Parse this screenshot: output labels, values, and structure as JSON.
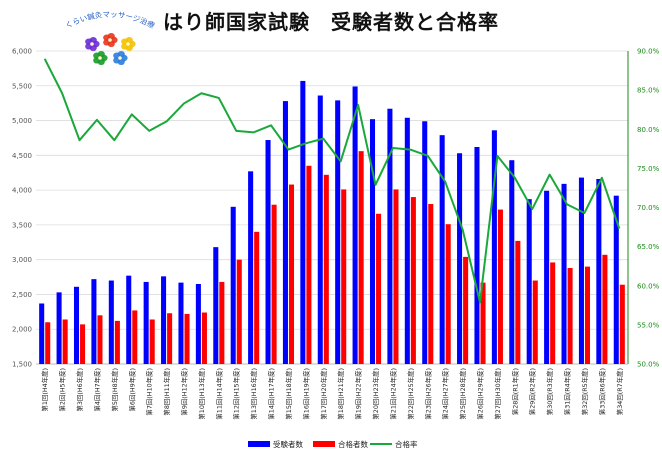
{
  "title": "はり師国家試験　受験者数と合格率",
  "logo": {
    "text": "ぷくらい鍼灸マッサージ治療院",
    "petal_colors": [
      "#6a2bd6",
      "#e8341c",
      "#f2c200",
      "#1a9a2a",
      "#2b7de0"
    ]
  },
  "colors": {
    "examinees": "#0000ff",
    "passers": "#ff0000",
    "rate": "#1aa83a",
    "grid": "#dcdcdc",
    "rate_axis": "#1a8a1a"
  },
  "legend": {
    "examinees": "受験者数",
    "passers": "合格者数",
    "rate": "合格率"
  },
  "chart_data": {
    "type": "bar",
    "categories": [
      "第1回",
      "第2回",
      "第3回",
      "第4回",
      "第5回",
      "第6回",
      "第7回",
      "第8回",
      "第9回",
      "第10回",
      "第11回",
      "第12回",
      "第13回",
      "第14回",
      "第15回",
      "第16回",
      "第17回",
      "第18回",
      "第19回",
      "第20回",
      "第21回",
      "第22回",
      "第23回",
      "第24回",
      "第25回",
      "第26回",
      "第27回",
      "第28回",
      "第29回",
      "第30回",
      "第31回",
      "第32回",
      "第33回",
      "第34回"
    ],
    "sub_categories": [
      "(H4年度)",
      "(H5年度)",
      "(H6年度)",
      "(H7年度)",
      "(H8年度)",
      "(H9年度)",
      "(H10年度)",
      "(H11年度)",
      "(H12年度)",
      "(H13年度)",
      "(H14年度)",
      "(H15年度)",
      "(H16年度)",
      "(H17年度)",
      "(H18年度)",
      "(H19年度)",
      "(H20年度)",
      "(H21年度)",
      "(H22年度)",
      "(H23年度)",
      "(H24年度)",
      "(H25年度)",
      "(H26年度)",
      "(H27年度)",
      "(H28年度)",
      "(H29年度)",
      "(H30年度)",
      "(R1年度)",
      "(R2年度)",
      "(R3年度)",
      "(R4年度)",
      "(R5年度)",
      "(R6年度)",
      "(R7年度)"
    ],
    "series": [
      {
        "name": "受験者数",
        "axis": "left",
        "kind": "bar",
        "values": [
          2370,
          2530,
          2610,
          2720,
          2700,
          2770,
          2680,
          2760,
          2670,
          2650,
          3180,
          3760,
          4270,
          4720,
          5280,
          5570,
          5360,
          5290,
          5490,
          5020,
          5170,
          5040,
          4990,
          4790,
          4530,
          4620,
          4860,
          4430,
          3870,
          3990,
          4090,
          4180,
          4160,
          3920
        ]
      },
      {
        "name": "合格者数",
        "axis": "left",
        "kind": "bar",
        "values": [
          2100,
          2140,
          2070,
          2200,
          2120,
          2270,
          2140,
          2230,
          2220,
          2240,
          2680,
          3000,
          3400,
          3790,
          4080,
          4350,
          4220,
          4010,
          4560,
          3660,
          4010,
          3900,
          3800,
          3510,
          3040,
          2670,
          3720,
          3270,
          2700,
          2960,
          2880,
          2900,
          3070,
          2640
        ]
      },
      {
        "name": "合格率",
        "axis": "right",
        "kind": "line",
        "values": [
          89.0,
          84.6,
          78.6,
          81.2,
          78.6,
          81.9,
          79.8,
          81.0,
          83.3,
          84.6,
          84.0,
          79.8,
          79.6,
          80.5,
          77.4,
          78.2,
          78.8,
          75.9,
          83.1,
          72.9,
          77.6,
          77.4,
          76.6,
          73.3,
          67.2,
          57.9,
          76.6,
          73.8,
          69.8,
          74.2,
          70.4,
          69.3,
          73.8,
          67.3
        ]
      }
    ],
    "y_left": {
      "min": 1500,
      "max": 6000,
      "ticks": [
        "1,500",
        "2,000",
        "2,500",
        "3,000",
        "3,500",
        "4,000",
        "4,500",
        "5,000",
        "5,500",
        "6,000"
      ]
    },
    "y_right": {
      "min": 50.0,
      "max": 90.0,
      "ticks": [
        "50.0%",
        "55.0%",
        "60.0%",
        "65.0%",
        "70.0%",
        "75.0%",
        "80.0%",
        "85.0%",
        "90.0%"
      ]
    },
    "grid": true,
    "legend_position": "bottom"
  }
}
